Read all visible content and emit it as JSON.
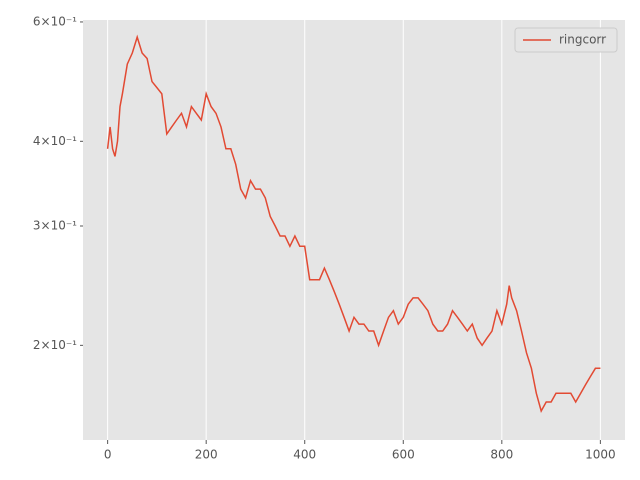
{
  "chart_data": {
    "type": "line",
    "log_y": true,
    "xgrid": true,
    "ygrid": false,
    "legend": "upper right",
    "x": [
      0,
      5,
      10,
      15,
      20,
      25,
      30,
      40,
      50,
      60,
      70,
      80,
      90,
      100,
      110,
      120,
      130,
      140,
      150,
      160,
      170,
      180,
      190,
      200,
      210,
      220,
      230,
      240,
      250,
      260,
      270,
      280,
      290,
      300,
      310,
      320,
      330,
      340,
      350,
      360,
      370,
      380,
      390,
      400,
      410,
      420,
      430,
      440,
      450,
      460,
      470,
      480,
      490,
      500,
      510,
      520,
      530,
      540,
      550,
      560,
      570,
      580,
      590,
      600,
      610,
      620,
      630,
      640,
      650,
      660,
      670,
      680,
      690,
      700,
      710,
      720,
      730,
      740,
      750,
      760,
      770,
      780,
      790,
      800,
      810,
      815,
      820,
      830,
      840,
      850,
      860,
      870,
      880,
      890,
      900,
      910,
      920,
      930,
      940,
      950,
      960,
      970,
      980,
      990,
      1000
    ],
    "series": [
      {
        "name": "ringcorr",
        "color": "#E24A33",
        "values": [
          0.39,
          0.42,
          0.39,
          0.38,
          0.4,
          0.45,
          0.47,
          0.52,
          0.54,
          0.57,
          0.54,
          0.53,
          0.49,
          0.48,
          0.47,
          0.41,
          0.42,
          0.43,
          0.44,
          0.42,
          0.45,
          0.44,
          0.43,
          0.47,
          0.45,
          0.44,
          0.42,
          0.39,
          0.39,
          0.37,
          0.34,
          0.33,
          0.35,
          0.34,
          0.34,
          0.33,
          0.31,
          0.3,
          0.29,
          0.29,
          0.28,
          0.29,
          0.28,
          0.28,
          0.25,
          0.25,
          0.25,
          0.26,
          0.25,
          0.24,
          0.23,
          0.22,
          0.21,
          0.22,
          0.215,
          0.215,
          0.21,
          0.21,
          0.2,
          0.21,
          0.22,
          0.225,
          0.215,
          0.22,
          0.23,
          0.235,
          0.235,
          0.23,
          0.225,
          0.215,
          0.21,
          0.21,
          0.215,
          0.225,
          0.22,
          0.215,
          0.21,
          0.215,
          0.205,
          0.2,
          0.205,
          0.21,
          0.225,
          0.215,
          0.23,
          0.245,
          0.235,
          0.225,
          0.21,
          0.195,
          0.185,
          0.17,
          0.16,
          0.165,
          0.165,
          0.17,
          0.17,
          0.17,
          0.17,
          0.165,
          0.17,
          0.175,
          0.18,
          0.185,
          0.185
        ]
      }
    ],
    "xlim": [
      -50,
      1050
    ],
    "xticks": [
      0,
      200,
      400,
      600,
      800,
      1000
    ],
    "ylim": [
      0.145,
      0.604
    ],
    "yticks": [
      {
        "value": 0.6,
        "label": "6×10⁻¹"
      },
      {
        "value": 0.4,
        "label": "4×10⁻¹"
      },
      {
        "value": 0.3,
        "label": "3×10⁻¹"
      },
      {
        "value": 0.2,
        "label": "2×10⁻¹"
      }
    ]
  }
}
